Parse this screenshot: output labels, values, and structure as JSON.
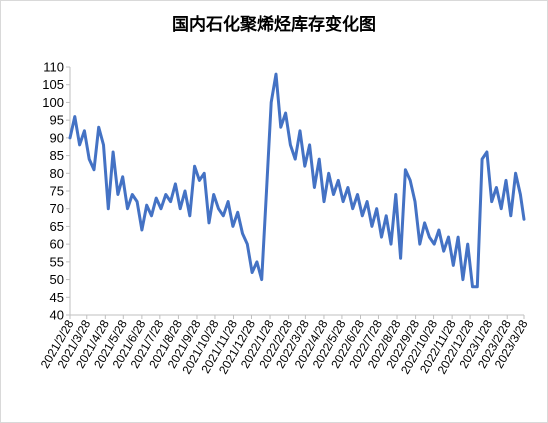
{
  "chart_data": {
    "type": "line",
    "title": "国内石化聚烯烃库存变化图",
    "xlabel": "",
    "ylabel": "",
    "ylim": [
      40,
      110
    ],
    "y_ticks": [
      40,
      45,
      50,
      55,
      60,
      65,
      70,
      75,
      80,
      85,
      90,
      95,
      100,
      105,
      110
    ],
    "x_tick_labels": [
      "2021/2/28",
      "2021/3/28",
      "2021/4/28",
      "2021/5/28",
      "2021/6/28",
      "2021/7/28",
      "2021/8/28",
      "2021/9/28",
      "2021/10/28",
      "2021/11/28",
      "2021/12/28",
      "2022/1/28",
      "2022/2/28",
      "2022/3/28",
      "2022/4/28",
      "2022/5/28",
      "2022/6/28",
      "2022/7/28",
      "2022/8/28",
      "2022/9/28",
      "2022/10/28",
      "2022/11/28",
      "2022/12/28",
      "2023/1/28",
      "2023/2/28",
      "2023/3/28"
    ],
    "grid": false,
    "legend": "none",
    "line_color": "#4472C4",
    "series": [
      {
        "x": [
          "2021/2/28",
          "2021/3/8",
          "2021/3/16",
          "2021/3/24",
          "2021/4/1",
          "2021/4/9",
          "2021/4/17",
          "2021/4/25",
          "2021/5/3",
          "2021/5/11",
          "2021/5/19",
          "2021/5/27",
          "2021/6/4",
          "2021/6/12",
          "2021/6/20",
          "2021/6/28",
          "2021/7/6",
          "2021/7/14",
          "2021/7/22",
          "2021/7/30",
          "2021/8/7",
          "2021/8/15",
          "2021/8/23",
          "2021/8/31",
          "2021/9/8",
          "2021/9/16",
          "2021/9/24",
          "2021/10/2",
          "2021/10/10",
          "2021/10/18",
          "2021/10/26",
          "2021/11/3",
          "2021/11/11",
          "2021/11/19",
          "2021/11/27",
          "2021/12/5",
          "2021/12/13",
          "2021/12/21",
          "2021/12/29",
          "2022/1/6",
          "2022/1/14",
          "2022/1/22",
          "2022/1/30",
          "2022/2/7",
          "2022/2/15",
          "2022/2/23",
          "2022/3/3",
          "2022/3/11",
          "2022/3/19",
          "2022/3/27",
          "2022/4/4",
          "2022/4/12",
          "2022/4/20",
          "2022/4/28",
          "2022/5/6",
          "2022/5/14",
          "2022/5/22",
          "2022/5/30",
          "2022/6/7",
          "2022/6/15",
          "2022/6/23",
          "2022/7/1",
          "2022/7/9",
          "2022/7/17",
          "2022/7/25",
          "2022/8/2",
          "2022/8/10",
          "2022/8/18",
          "2022/8/26",
          "2022/9/3",
          "2022/9/11",
          "2022/9/19",
          "2022/9/27",
          "2022/10/5",
          "2022/10/13",
          "2022/10/21",
          "2022/10/29",
          "2022/11/6",
          "2022/11/14",
          "2022/11/22",
          "2022/11/30",
          "2022/12/8",
          "2022/12/16",
          "2022/12/24",
          "2023/1/1",
          "2023/1/9",
          "2023/1/17",
          "2023/1/25",
          "2023/2/2",
          "2023/2/10",
          "2023/2/18",
          "2023/2/26",
          "2023/3/6",
          "2023/3/14",
          "2023/3/22",
          "2023/3/28"
        ],
        "values": [
          90,
          96,
          88,
          92,
          84,
          81,
          93,
          88,
          70,
          86,
          74,
          79,
          70,
          74,
          72,
          64,
          71,
          68,
          73,
          70,
          74,
          72,
          77,
          70,
          75,
          68,
          82,
          78,
          80,
          66,
          74,
          70,
          68,
          72,
          65,
          69,
          63,
          60,
          52,
          55,
          50,
          75,
          100,
          108,
          93,
          97,
          88,
          84,
          92,
          82,
          88,
          76,
          84,
          72,
          80,
          74,
          78,
          72,
          76,
          70,
          74,
          68,
          72,
          65,
          70,
          62,
          68,
          60,
          74,
          56,
          81,
          78,
          72,
          60,
          66,
          62,
          60,
          64,
          58,
          62,
          54,
          62,
          50,
          60,
          48,
          48,
          84,
          86,
          72,
          76,
          70,
          78,
          68,
          80,
          74,
          67
        ]
      }
    ]
  }
}
